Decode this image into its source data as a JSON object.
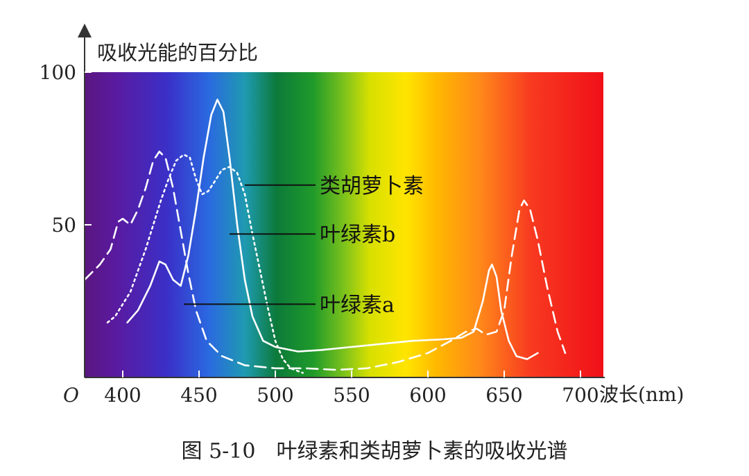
{
  "chart_data": {
    "type": "line",
    "title": "",
    "caption": "图 5-10　叶绿素和类胡萝卜素的吸收光谱",
    "ylabel": "吸收光能的百分比",
    "xlabel": "波长(nm)",
    "origin_label": "O",
    "xlim": [
      375,
      715
    ],
    "ylim": [
      0,
      100
    ],
    "x_ticks": [
      400,
      450,
      500,
      550,
      600,
      650,
      700
    ],
    "y_ticks": [
      50,
      100
    ],
    "background": "visible-light spectrum gradient (violet to red)",
    "grid": false,
    "series": [
      {
        "name": "叶绿素a",
        "style": "dashed",
        "color": "#ffffff",
        "points": [
          [
            375,
            32
          ],
          [
            385,
            37
          ],
          [
            392,
            42
          ],
          [
            397,
            51
          ],
          [
            400,
            52
          ],
          [
            405,
            50
          ],
          [
            410,
            55
          ],
          [
            415,
            62
          ],
          [
            420,
            71
          ],
          [
            424,
            74
          ],
          [
            428,
            72
          ],
          [
            433,
            62
          ],
          [
            438,
            48
          ],
          [
            443,
            34
          ],
          [
            448,
            22
          ],
          [
            455,
            12
          ],
          [
            465,
            7
          ],
          [
            480,
            4
          ],
          [
            500,
            3
          ],
          [
            520,
            3
          ],
          [
            540,
            2.5
          ],
          [
            560,
            3
          ],
          [
            580,
            5
          ],
          [
            600,
            8
          ],
          [
            615,
            12
          ],
          [
            625,
            15
          ],
          [
            632,
            16
          ],
          [
            638,
            14
          ],
          [
            645,
            15
          ],
          [
            650,
            22
          ],
          [
            655,
            40
          ],
          [
            660,
            55
          ],
          [
            663,
            58
          ],
          [
            667,
            55
          ],
          [
            672,
            45
          ],
          [
            678,
            30
          ],
          [
            685,
            15
          ],
          [
            690,
            8
          ]
        ]
      },
      {
        "name": "叶绿素b",
        "style": "solid",
        "color": "#ffffff",
        "points": [
          [
            403,
            18
          ],
          [
            410,
            22
          ],
          [
            418,
            30
          ],
          [
            424,
            38
          ],
          [
            428,
            37
          ],
          [
            433,
            32
          ],
          [
            438,
            30
          ],
          [
            443,
            40
          ],
          [
            448,
            55
          ],
          [
            453,
            72
          ],
          [
            458,
            86
          ],
          [
            462,
            91
          ],
          [
            466,
            87
          ],
          [
            470,
            72
          ],
          [
            475,
            50
          ],
          [
            480,
            32
          ],
          [
            485,
            20
          ],
          [
            492,
            12
          ],
          [
            500,
            10
          ],
          [
            515,
            8.5
          ],
          [
            530,
            9
          ],
          [
            550,
            10
          ],
          [
            570,
            11
          ],
          [
            590,
            12
          ],
          [
            610,
            12.5
          ],
          [
            622,
            13
          ],
          [
            630,
            15
          ],
          [
            636,
            25
          ],
          [
            640,
            35
          ],
          [
            642,
            37
          ],
          [
            645,
            33
          ],
          [
            648,
            22
          ],
          [
            653,
            12
          ],
          [
            658,
            7
          ],
          [
            665,
            6
          ],
          [
            672,
            8
          ]
        ]
      },
      {
        "name": "类胡萝卜素",
        "style": "dotted",
        "color": "#ffffff",
        "points": [
          [
            390,
            18
          ],
          [
            395,
            20
          ],
          [
            400,
            24
          ],
          [
            405,
            28
          ],
          [
            410,
            35
          ],
          [
            415,
            42
          ],
          [
            420,
            50
          ],
          [
            425,
            58
          ],
          [
            430,
            65
          ],
          [
            435,
            71
          ],
          [
            440,
            73
          ],
          [
            444,
            72
          ],
          [
            448,
            65
          ],
          [
            452,
            60
          ],
          [
            456,
            61
          ],
          [
            460,
            64
          ],
          [
            465,
            68
          ],
          [
            470,
            69
          ],
          [
            475,
            67
          ],
          [
            480,
            60
          ],
          [
            485,
            47
          ],
          [
            490,
            35
          ],
          [
            495,
            23
          ],
          [
            500,
            12
          ],
          [
            505,
            6
          ],
          [
            510,
            3
          ],
          [
            518,
            1.5
          ]
        ]
      }
    ],
    "annotations": [
      {
        "text": "类胡萝卜素",
        "x": 480,
        "y": 63
      },
      {
        "text": "叶绿素b",
        "x": 470,
        "y": 47
      },
      {
        "text": "叶绿素a",
        "x": 440,
        "y": 24
      }
    ]
  }
}
